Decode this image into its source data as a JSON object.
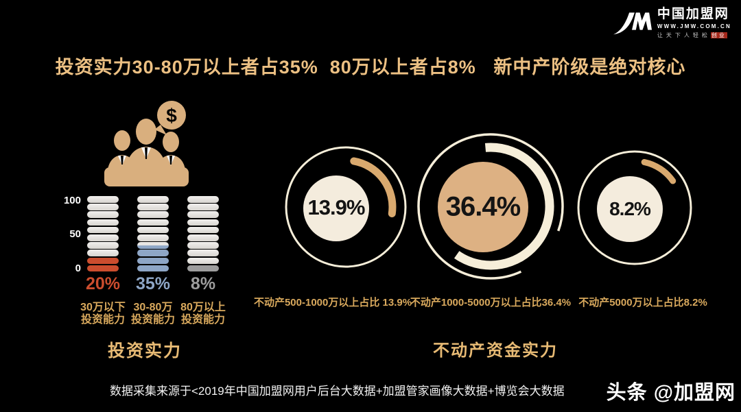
{
  "logo": {
    "name": "中国加盟网",
    "url": "WWW.JMW.COM.CN",
    "tagline": "让天下人轻松",
    "tagline_highlight": "创业"
  },
  "title": "投资实力30-80万以上者占35%  80万以上者占8%   新中产阶级是绝对核心",
  "bars": {
    "title": "投资实力",
    "yticks": [
      "100",
      "50",
      "0"
    ],
    "columns": [
      {
        "pct": "20%",
        "value": 20,
        "color": "#cb4d2e",
        "label_line1": "30万以下",
        "label_line2": "投资能力"
      },
      {
        "pct": "35%",
        "value": 35,
        "color": "#8ea6c6",
        "label_line1": "30-80万",
        "label_line2": "投资能力"
      },
      {
        "pct": "8%",
        "value": 8,
        "color": "#9d9d9d",
        "label_line1": "80万以上",
        "label_line2": "投资能力"
      }
    ]
  },
  "donuts": {
    "title": "不动产资金实力",
    "items": [
      {
        "value": "13.9%",
        "caption": "不动产500-1000万以上占比 13.9%"
      },
      {
        "value": "36.4%",
        "caption": "不动产1000-5000万以上占比36.4%"
      },
      {
        "value": "8.2%",
        "caption": "不动产5000万以上占比8.2%"
      }
    ]
  },
  "footer": {
    "source": "数据采集来源于<2019年中国加盟网用户后台大数据+加盟管家画像大数据+博览会大数据",
    "watermark": "头条 @加盟网"
  },
  "colors": {
    "gold_title": "#ecc083",
    "gold_caption": "#d9a95d",
    "cream": "#f6eed9",
    "tan": "#d9a96e",
    "tan_fill": "#ddb183",
    "red": "#cb4d2e",
    "blue": "#8ea6c6",
    "gray": "#9d9d9d"
  },
  "chart_data": [
    {
      "type": "bar",
      "variant": "stacked-pill-ladder",
      "title": "投资实力",
      "categories": [
        "30万以下投资能力",
        "30-80万投资能力",
        "80万以上投资能力"
      ],
      "values": [
        20,
        35,
        8
      ],
      "unit": "percent",
      "ylim": [
        0,
        100
      ],
      "yticks": [
        0,
        50,
        100
      ],
      "colors": [
        "#cb4d2e",
        "#8ea6c6",
        "#9d9d9d"
      ],
      "note": "each column is 10 pills = 100; colored pills from bottom represent the value"
    },
    {
      "type": "pie",
      "variant": "donut-badge",
      "title": "不动产资金实力",
      "categories": [
        "不动产500-1000万以上占比",
        "不动产1000-5000万以上占比",
        "不动产5000万以上占比"
      ],
      "values": [
        13.9,
        36.4,
        8.2
      ],
      "unit": "percent",
      "legend_position": "below-each-donut"
    }
  ]
}
